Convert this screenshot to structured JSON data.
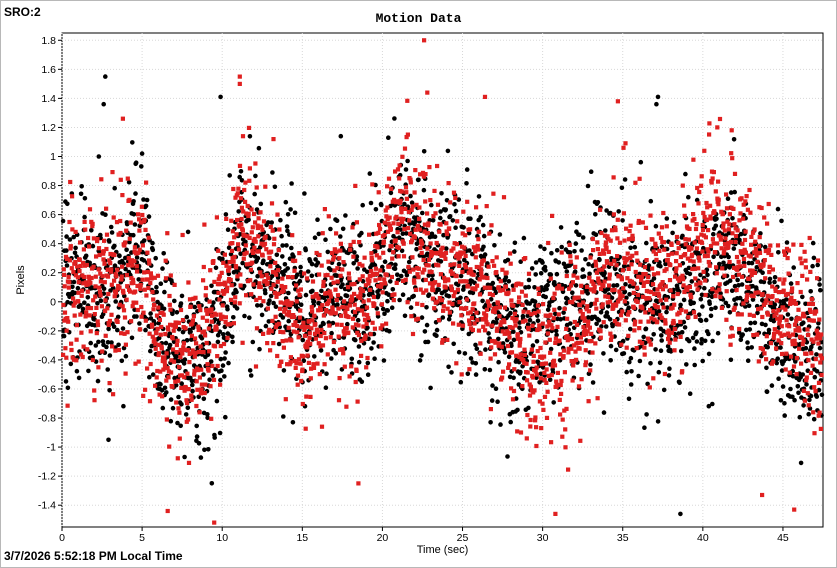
{
  "header": {
    "sro": "SRO:2"
  },
  "footer": {
    "timestamp": "3/7/2026 5:52:18 PM Local Time"
  },
  "chart_data": {
    "type": "scatter",
    "title": "Motion Data",
    "xlabel": "Time (sec)",
    "ylabel": "Pixels",
    "xlim": [
      0,
      47.5
    ],
    "ylim": [
      -1.55,
      1.85
    ],
    "x_ticks": [
      0,
      5,
      10,
      15,
      20,
      25,
      30,
      35,
      40,
      45
    ],
    "y_ticks": [
      -1.4,
      -1.2,
      -1,
      -0.8,
      -0.6,
      -0.4,
      -0.2,
      0,
      0.2,
      0.4,
      0.6,
      0.8,
      1,
      1.2,
      1.4,
      1.6,
      1.8
    ],
    "grid": true,
    "legend": "none",
    "sample_interval_sec": 0.02,
    "series": [
      {
        "color": "#000000",
        "marker": "circle",
        "baseline": [
          [
            0,
            0.05
          ],
          [
            2,
            0.1
          ],
          [
            3,
            0.0
          ],
          [
            5,
            0.35
          ],
          [
            6,
            -0.2
          ],
          [
            7,
            -0.3
          ],
          [
            8,
            -0.45
          ],
          [
            9,
            -0.35
          ],
          [
            10,
            -0.2
          ],
          [
            11,
            0.3
          ],
          [
            12,
            0.35
          ],
          [
            13,
            0.15
          ],
          [
            15,
            -0.05
          ],
          [
            17,
            0.1
          ],
          [
            19,
            0.05
          ],
          [
            20,
            0.15
          ],
          [
            21,
            0.55
          ],
          [
            22,
            0.35
          ],
          [
            24,
            0.2
          ],
          [
            26,
            0.05
          ],
          [
            28,
            -0.25
          ],
          [
            30,
            -0.1
          ],
          [
            32,
            0.05
          ],
          [
            34,
            0.1
          ],
          [
            36,
            0.0
          ],
          [
            38,
            -0.05
          ],
          [
            40,
            0.1
          ],
          [
            42,
            0.3
          ],
          [
            44,
            -0.1
          ],
          [
            46,
            -0.35
          ],
          [
            47.5,
            -0.25
          ]
        ],
        "spread": 0.3,
        "outliers": [
          [
            2.7,
            1.55
          ],
          [
            2.6,
            1.36
          ],
          [
            9.9,
            1.41
          ],
          [
            37.2,
            1.41
          ],
          [
            37.1,
            1.36
          ],
          [
            38.6,
            -1.46
          ],
          [
            5.0,
            1.02
          ],
          [
            4.6,
            0.95
          ],
          [
            17.4,
            1.14
          ],
          [
            2.3,
            1.0
          ],
          [
            2.9,
            -0.95
          ]
        ]
      },
      {
        "color": "#e02020",
        "marker": "square",
        "baseline": [
          [
            0,
            0.0
          ],
          [
            2,
            0.15
          ],
          [
            3,
            0.1
          ],
          [
            5,
            0.25
          ],
          [
            6,
            -0.15
          ],
          [
            7,
            -0.25
          ],
          [
            8,
            -0.35
          ],
          [
            9,
            -0.3
          ],
          [
            10,
            0.0
          ],
          [
            11,
            0.45
          ],
          [
            12,
            0.5
          ],
          [
            13,
            0.1
          ],
          [
            15,
            -0.25
          ],
          [
            17,
            0.05
          ],
          [
            19,
            -0.1
          ],
          [
            20,
            0.25
          ],
          [
            21,
            0.6
          ],
          [
            22,
            0.45
          ],
          [
            24,
            0.25
          ],
          [
            26,
            0.05
          ],
          [
            28,
            -0.15
          ],
          [
            30,
            -0.5
          ],
          [
            32,
            -0.2
          ],
          [
            34,
            0.2
          ],
          [
            36,
            0.15
          ],
          [
            38,
            0.05
          ],
          [
            40,
            0.45
          ],
          [
            42,
            0.4
          ],
          [
            44,
            0.1
          ],
          [
            46,
            -0.2
          ],
          [
            47.5,
            -0.35
          ]
        ],
        "spread": 0.28,
        "outliers": [
          [
            22.6,
            1.8
          ],
          [
            22.8,
            1.44
          ],
          [
            11.1,
            1.55
          ],
          [
            11.1,
            1.5
          ],
          [
            9.5,
            -1.52
          ],
          [
            6.6,
            -1.44
          ],
          [
            3.8,
            1.26
          ],
          [
            26.4,
            1.41
          ],
          [
            34.7,
            1.38
          ],
          [
            11.3,
            1.14
          ],
          [
            13.2,
            1.12
          ],
          [
            43.7,
            -1.33
          ],
          [
            45.7,
            -1.43
          ],
          [
            18.5,
            -1.25
          ],
          [
            30.8,
            -1.46
          ],
          [
            40.9,
            1.2
          ],
          [
            41.8,
            1.18
          ]
        ]
      }
    ]
  }
}
